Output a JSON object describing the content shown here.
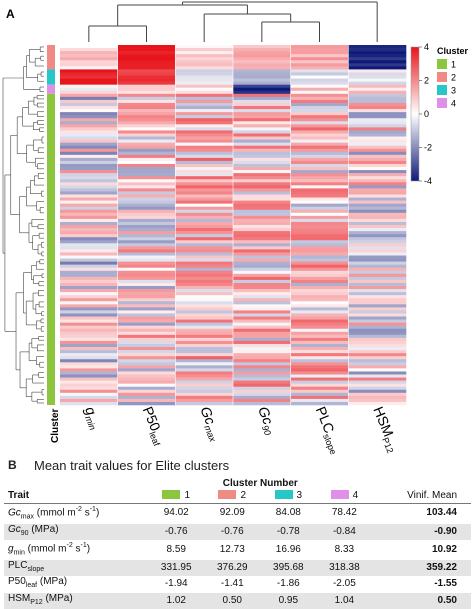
{
  "panel_a": {
    "label": "A",
    "columns": [
      "g_min",
      "P50_leaf",
      "Gc_max",
      "Gc_90",
      "PLC_slope",
      "HSM_P12"
    ],
    "column_labels": [
      {
        "main": "g",
        "sub": "min"
      },
      {
        "main": "P50",
        "sub": "leaf"
      },
      {
        "main": "Gc",
        "sub": "max"
      },
      {
        "main": "Gc",
        "sub": "90"
      },
      {
        "main": "PLC",
        "sub": "slope"
      },
      {
        "main": "HSM",
        "sub": "P12"
      }
    ],
    "cluster_axis_label": "Cluster",
    "colorbar": {
      "ticks": [
        "4",
        "2",
        "0",
        "-2",
        "-4"
      ],
      "colors": {
        "high": "#e8141b",
        "mid": "#ffffff",
        "low": "#0f1a78"
      }
    },
    "legend": {
      "title": "Cluster",
      "items": [
        {
          "label": "1",
          "color": "#8cc63f"
        },
        {
          "label": "2",
          "color": "#f08a84"
        },
        {
          "label": "3",
          "color": "#26c6c9"
        },
        {
          "label": "4",
          "color": "#e090e8"
        }
      ]
    }
  },
  "chart_data": {
    "type": "heatmap",
    "x": [
      "g_min",
      "P50_leaf",
      "Gc_max",
      "Gc_90",
      "PLC_slope",
      "HSM_P12"
    ],
    "value_range": [
      -4,
      4
    ],
    "cluster_rows": [
      {
        "cluster": "2",
        "rows": 8,
        "mean_values": [
          0.6,
          4.0,
          0.3,
          1.0,
          1.1,
          -3.8
        ]
      },
      {
        "cluster": "3",
        "rows": 5,
        "mean_values": [
          3.6,
          3.4,
          -0.4,
          -0.8,
          -0.5,
          -0.3
        ]
      },
      {
        "cluster": "4",
        "rows": 3,
        "mean_values": [
          0.3,
          0.7,
          0.4,
          -3.6,
          0.5,
          0.5
        ]
      },
      {
        "cluster": "1",
        "rows": 102,
        "mean_values": [
          -0.2,
          0.3,
          0.7,
          0.6,
          0.6,
          0.1
        ]
      }
    ]
  },
  "panel_b": {
    "label": "B",
    "title": "Mean trait values for Elite clusters",
    "cluster_number_header": "Cluster Number",
    "trait_header": "Trait",
    "clusters": [
      {
        "label": "1",
        "color": "#8cc63f"
      },
      {
        "label": "2",
        "color": "#f08a84"
      },
      {
        "label": "3",
        "color": "#26c6c9"
      },
      {
        "label": "4",
        "color": "#e090e8"
      }
    ],
    "vinif_header": "Vinif. Mean",
    "rows": [
      {
        "trait_main": "Gc",
        "trait_sub": "max",
        "trait_unit": " (mmol m",
        "sup1": "-2",
        "mid": " s",
        "sup2": "-1",
        "end": ")",
        "values": [
          "94.02",
          "92.09",
          "84.08",
          "78.42"
        ],
        "mean": "103.44"
      },
      {
        "trait_main": "Gc",
        "trait_sub": "90",
        "trait_unit": " (MPa)",
        "sup1": "",
        "mid": "",
        "sup2": "",
        "end": "",
        "values": [
          "-0.76",
          "-0.76",
          "-0.78",
          "-0.84"
        ],
        "mean": "-0.90"
      },
      {
        "trait_main": "g",
        "trait_sub": "min",
        "trait_unit": " (mmol m",
        "sup1": "-2",
        "mid": " s",
        "sup2": "-1",
        "end": ")",
        "values": [
          "8.59",
          "12.73",
          "16.96",
          "8.33"
        ],
        "mean": "10.92"
      },
      {
        "trait_main": "PLC",
        "trait_sub": "slope",
        "trait_unit": "",
        "sup1": "",
        "mid": "",
        "sup2": "",
        "end": "",
        "values": [
          "331.95",
          "376.29",
          "395.68",
          "318.38"
        ],
        "mean": "359.22"
      },
      {
        "trait_main": "P50",
        "trait_sub": "leaf",
        "trait_unit": " (MPa)",
        "sup1": "",
        "mid": "",
        "sup2": "",
        "end": "",
        "values": [
          "-1.94",
          "-1.41",
          "-1.86",
          "-2.05"
        ],
        "mean": "-1.55"
      },
      {
        "trait_main": "HSM",
        "trait_sub": "P12",
        "trait_unit": " (MPa)",
        "sup1": "",
        "mid": "",
        "sup2": "",
        "end": "",
        "values": [
          "1.02",
          "0.50",
          "0.95",
          "1.04"
        ],
        "mean": "0.50"
      }
    ]
  }
}
